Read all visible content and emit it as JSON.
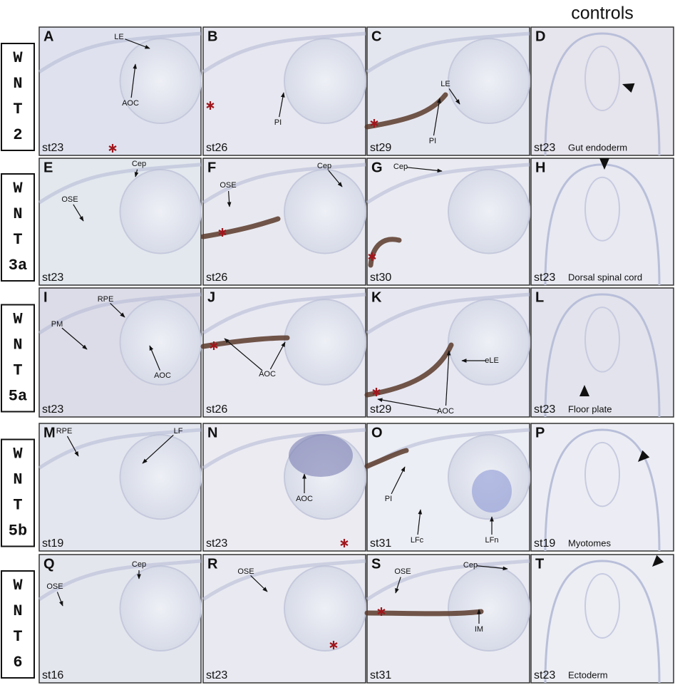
{
  "header": {
    "title": "controls"
  },
  "rows": [
    {
      "gene": [
        "W",
        "N",
        "T",
        "2"
      ],
      "panels": [
        {
          "letter": "A",
          "stage": "st23",
          "labels": [
            "LE",
            "AOC"
          ]
        },
        {
          "letter": "B",
          "stage": "st26",
          "labels": [
            "PI"
          ]
        },
        {
          "letter": "C",
          "stage": "st29",
          "labels": [
            "LE",
            "PI"
          ]
        },
        {
          "letter": "D",
          "stage": "st23",
          "caption": "Gut endoderm"
        }
      ]
    },
    {
      "gene": [
        "W",
        "N",
        "T",
        "3a"
      ],
      "panels": [
        {
          "letter": "E",
          "stage": "st23",
          "labels": [
            "Cep",
            "OSE"
          ]
        },
        {
          "letter": "F",
          "stage": "st26",
          "labels": [
            "OSE",
            "Cep"
          ]
        },
        {
          "letter": "G",
          "stage": "st30",
          "labels": [
            "Cep"
          ]
        },
        {
          "letter": "H",
          "stage": "st23",
          "caption": "Dorsal spinal cord"
        }
      ]
    },
    {
      "gene": [
        "W",
        "N",
        "T",
        "5a"
      ],
      "panels": [
        {
          "letter": "I",
          "stage": "st23",
          "labels": [
            "RPE",
            "PM",
            "AOC"
          ]
        },
        {
          "letter": "J",
          "stage": "st26",
          "labels": [
            "AOC"
          ]
        },
        {
          "letter": "K",
          "stage": "st29",
          "labels": [
            "eLE",
            "AOC"
          ]
        },
        {
          "letter": "L",
          "stage": "st23",
          "caption": "Floor plate"
        }
      ]
    },
    {
      "gene": [
        "W",
        "N",
        "T",
        "5b"
      ],
      "panels": [
        {
          "letter": "M",
          "stage": "st19",
          "labels": [
            "RPE",
            "LF"
          ]
        },
        {
          "letter": "N",
          "stage": "st23",
          "labels": [
            "AOC"
          ]
        },
        {
          "letter": "O",
          "stage": "st31",
          "labels": [
            "PI",
            "LFc",
            "LFn"
          ]
        },
        {
          "letter": "P",
          "stage": "st19",
          "caption": "Myotomes"
        }
      ]
    },
    {
      "gene": [
        "W",
        "N",
        "T",
        "6"
      ],
      "panels": [
        {
          "letter": "Q",
          "stage": "st16",
          "labels": [
            "Cep",
            "OSE"
          ]
        },
        {
          "letter": "R",
          "stage": "st23",
          "labels": [
            "OSE"
          ]
        },
        {
          "letter": "S",
          "stage": "st31",
          "labels": [
            "Cep",
            "OSE",
            "IM"
          ]
        },
        {
          "letter": "T",
          "stage": "st23",
          "caption": "Ectoderm"
        }
      ]
    }
  ]
}
